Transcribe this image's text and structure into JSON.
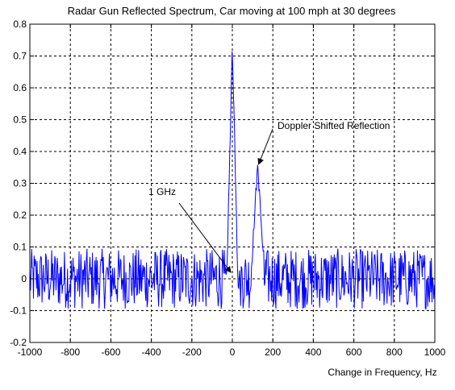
{
  "chart_data": {
    "type": "line",
    "title": "Radar Gun Reflected Spectrum, Car moving at 100 mph at 30 degrees",
    "xlabel": "Change in Frequency, Hz",
    "ylabel": "",
    "xlim": [
      -1000,
      1000
    ],
    "ylim": [
      -0.2,
      0.8
    ],
    "xticks": [
      -1000,
      -800,
      -600,
      -400,
      -200,
      0,
      200,
      400,
      600,
      800,
      1000
    ],
    "yticks": [
      -0.2,
      -0.1,
      0,
      0.1,
      0.2,
      0.3,
      0.4,
      0.5,
      0.6,
      0.7,
      0.8
    ],
    "xtick_labels": [
      "-1000",
      "-800",
      "-600",
      "-400",
      "-200",
      "0",
      "200",
      "400",
      "600",
      "800",
      "1000"
    ],
    "ytick_labels": [
      "-0.2",
      "-0.1",
      "0",
      "0.1",
      "0.2",
      "0.3",
      "0.4",
      "0.5",
      "0.6",
      "0.7",
      "0.8"
    ],
    "grid": true,
    "line_color": "#0000ff",
    "noise_amplitude": 0.15,
    "peaks": [
      {
        "x": 0,
        "y": 0.73
      },
      {
        "x": 125,
        "y": 0.36
      }
    ],
    "annotations": [
      {
        "text": "Doppler Shifted Reflection",
        "target": {
          "x": 130,
          "y": 0.36
        }
      },
      {
        "text": "1 GHz",
        "target": {
          "x": 0,
          "y": 0.0
        }
      }
    ]
  }
}
